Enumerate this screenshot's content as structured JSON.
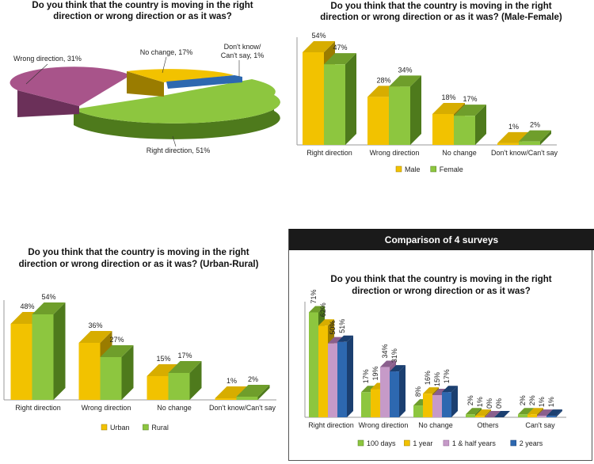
{
  "colors": {
    "yellow": "#f2c200",
    "yellow_side": "#9a7c00",
    "yellow_top": "#d7ad00",
    "green": "#8dc63f",
    "green_side": "#4e7a1c",
    "green_top": "#6f9e2b",
    "purple": "#c69ac8",
    "purple_side": "#8a5f8d",
    "blue": "#2d68b0",
    "blue_side": "#1b3f70",
    "pie_purple": "#a8548a",
    "pie_purple_side": "#6b3059"
  },
  "chart_data": [
    {
      "id": "overall",
      "type": "pie",
      "title_lines": [
        "Do you think that the country is moving in the right",
        "direction or wrong direction or as it was?"
      ],
      "slices": [
        {
          "name": "Right direction",
          "label": "Right direction, 51%",
          "value": 51,
          "color": "green"
        },
        {
          "name": "Wrong direction",
          "label": "Wrong direction, 31%",
          "value": 31,
          "color": "pie_purple"
        },
        {
          "name": "No change",
          "label": "No change, 17%",
          "value": 17,
          "color": "yellow"
        },
        {
          "name": "Don't know/Can't say",
          "label_lines": [
            "Don't know/",
            "Can't say, 1%"
          ],
          "value": 1,
          "color": "blue"
        }
      ]
    },
    {
      "id": "male-female",
      "type": "bar",
      "title_lines": [
        "Do you think that the country is moving in the right",
        "direction or wrong direction or as it was?  (Male-Female)"
      ],
      "categories": [
        "Right direction",
        "Wrong direction",
        "No change",
        "Don't know/Can't say"
      ],
      "series": [
        {
          "name": "Male",
          "values": [
            54,
            28,
            18,
            1
          ],
          "labels": [
            "54%",
            "28%",
            "18%",
            "1%"
          ],
          "color": "yellow"
        },
        {
          "name": "Female",
          "values": [
            47,
            34,
            17,
            2
          ],
          "labels": [
            "47%",
            "34%",
            "17%",
            "2%"
          ],
          "color": "green"
        }
      ],
      "ylim": [
        0,
        60
      ],
      "legend": "bottom"
    },
    {
      "id": "urban-rural",
      "type": "bar",
      "title_lines": [
        "Do you think that the country is moving in the right",
        "direction or wrong direction or as it was? (Urban-Rural)"
      ],
      "categories": [
        "Right direction",
        "Wrong direction",
        "No change",
        "Don't know/Can't say"
      ],
      "series": [
        {
          "name": "Urban",
          "values": [
            48,
            36,
            15,
            1
          ],
          "labels": [
            "48%",
            "36%",
            "15%",
            "1%"
          ],
          "color": "yellow"
        },
        {
          "name": "Rural",
          "values": [
            54,
            27,
            17,
            2
          ],
          "labels": [
            "54%",
            "27%",
            "17%",
            "2%"
          ],
          "color": "green"
        }
      ],
      "ylim": [
        0,
        60
      ],
      "legend": "bottom"
    },
    {
      "id": "four-surveys",
      "type": "bar",
      "header": "Comparison of 4 surveys",
      "title_lines": [
        "Do you think that the country is moving in the right",
        "direction or wrong direction or as it was?"
      ],
      "categories": [
        "Right direction",
        "Wrong direction",
        "No change",
        "Others",
        "Can't say"
      ],
      "series": [
        {
          "name": "100 days",
          "values": [
            71,
            17,
            8,
            2,
            2
          ],
          "labels": [
            "71%",
            "17%",
            "8%",
            "2%",
            "2%"
          ],
          "color": "green"
        },
        {
          "name": "1 year",
          "values": [
            62,
            19,
            16,
            1,
            2
          ],
          "labels": [
            "62%",
            "19%",
            "16%",
            "1%",
            "2%"
          ],
          "color": "yellow"
        },
        {
          "name": "1 & half years",
          "values": [
            50,
            34,
            15,
            0,
            1
          ],
          "labels": [
            "50%",
            "34%",
            "15%",
            "0%",
            "1%"
          ],
          "color": "purple"
        },
        {
          "name": "2 years",
          "values": [
            51,
            31,
            17,
            0,
            1
          ],
          "labels": [
            "51%",
            "31%",
            "17%",
            "0%",
            "1%"
          ],
          "color": "blue"
        }
      ],
      "ylim": [
        0,
        75
      ],
      "legend": "bottom"
    }
  ]
}
